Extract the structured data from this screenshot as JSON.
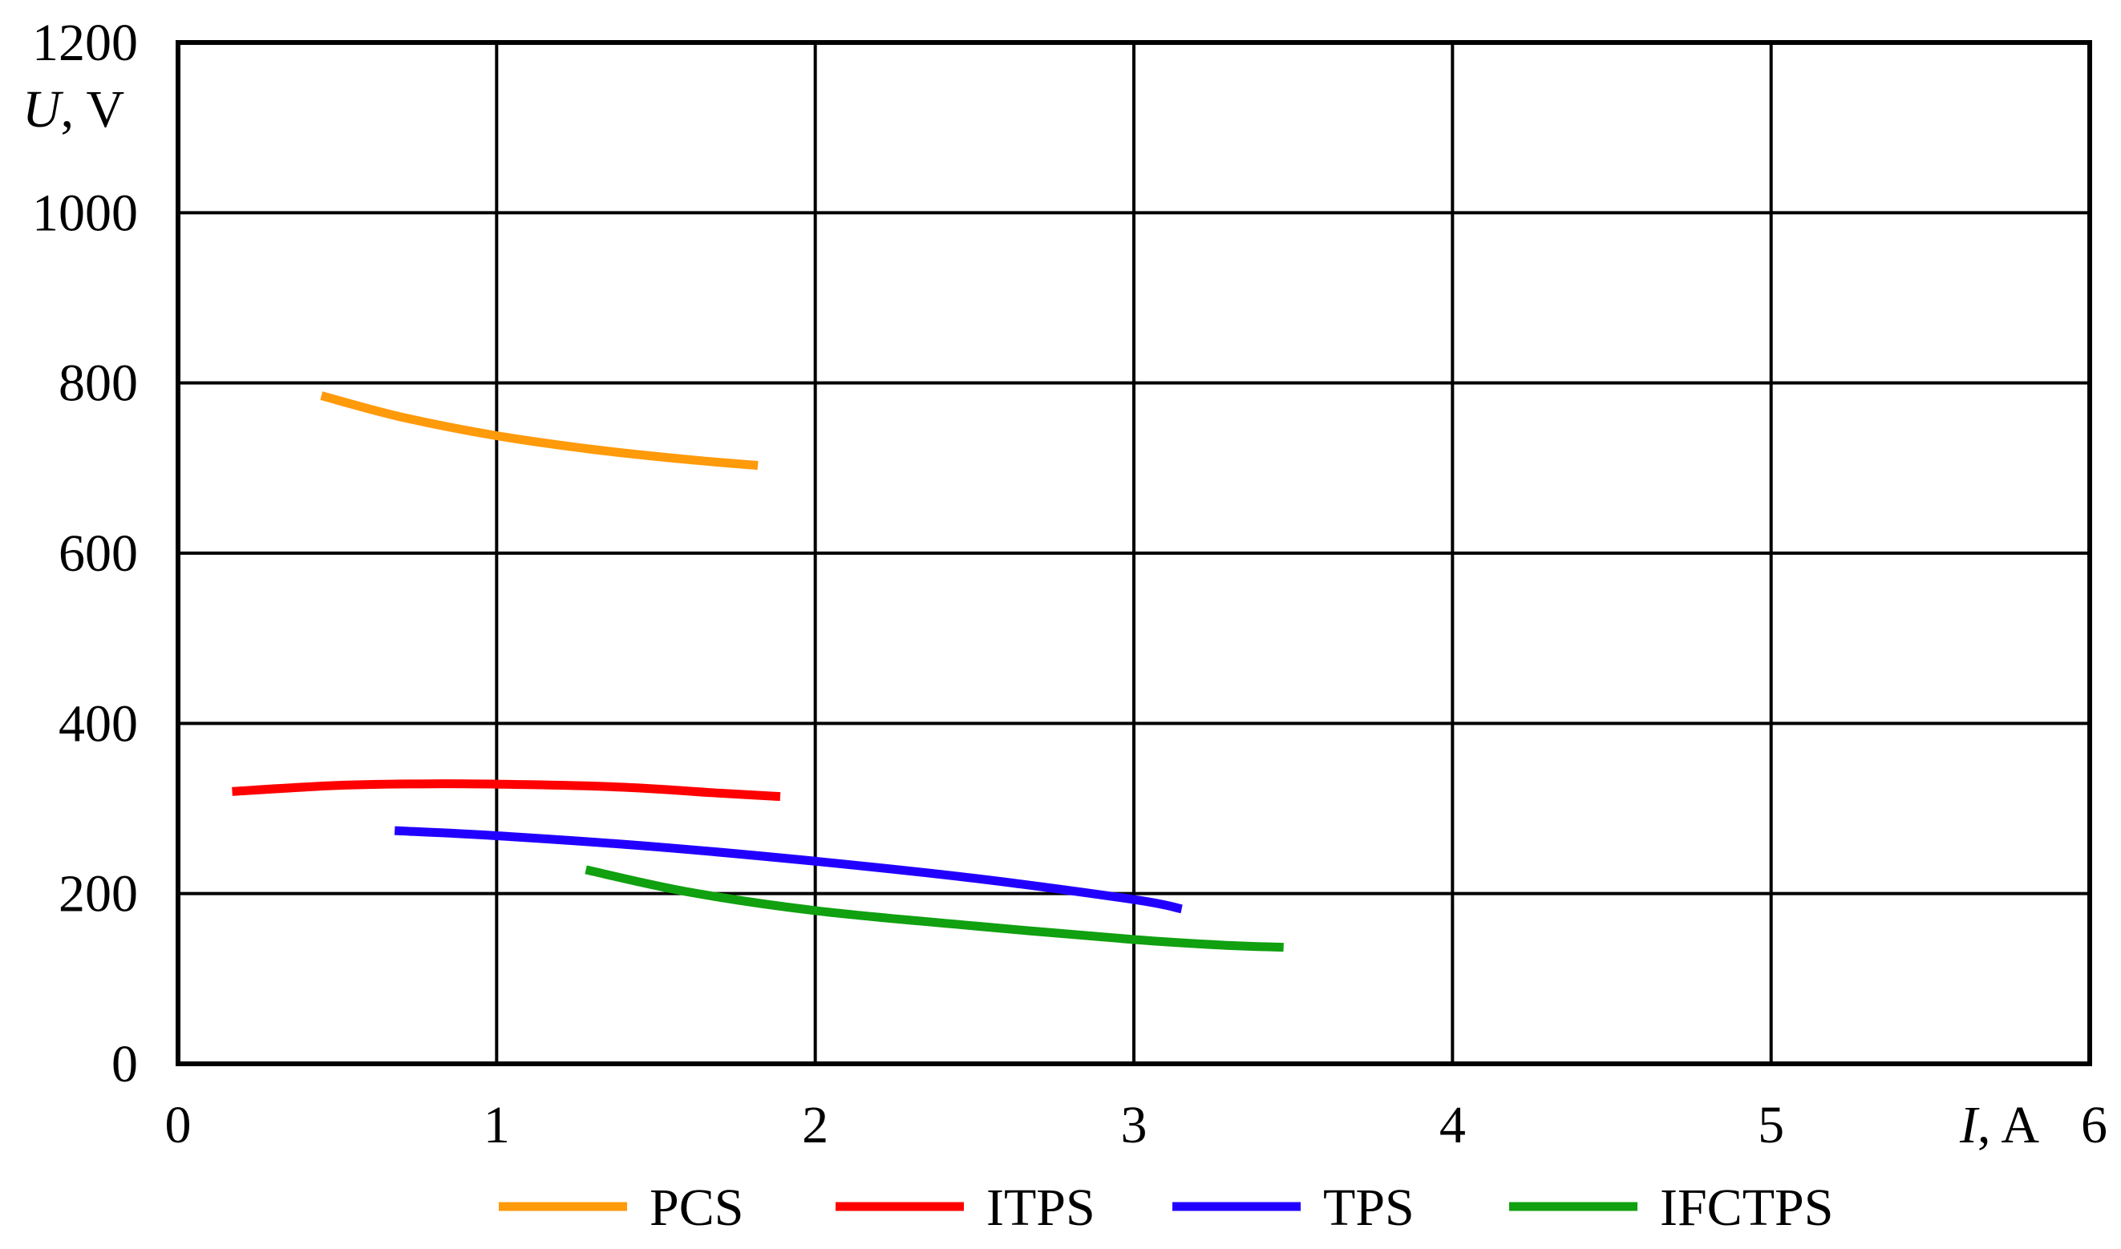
{
  "chart_data": {
    "type": "line",
    "title": "",
    "xlabel": {
      "var": "I",
      "unit": ", A"
    },
    "ylabel": {
      "var": "U",
      "unit": ", V"
    },
    "xlim": [
      0,
      6
    ],
    "ylim": [
      0,
      1200
    ],
    "x_ticks": [
      "0",
      "1",
      "2",
      "3",
      "4",
      "5",
      "6"
    ],
    "y_ticks": [
      "0",
      "200",
      "400",
      "600",
      "800",
      "1000",
      "1200"
    ],
    "grid": true,
    "legend_position": "bottom",
    "series": [
      {
        "name": "PCS",
        "color": "#ff9a0a",
        "points": [
          [
            0.45,
            785
          ],
          [
            0.7,
            760
          ],
          [
            1.0,
            738
          ],
          [
            1.3,
            722
          ],
          [
            1.6,
            710
          ],
          [
            1.82,
            703
          ]
        ]
      },
      {
        "name": "ITPS",
        "color": "#ff0000",
        "points": [
          [
            0.17,
            320
          ],
          [
            0.5,
            327
          ],
          [
            0.8,
            329
          ],
          [
            1.1,
            328
          ],
          [
            1.4,
            325
          ],
          [
            1.7,
            318
          ],
          [
            1.89,
            314
          ]
        ]
      },
      {
        "name": "TPS",
        "color": "#2200ff",
        "points": [
          [
            0.68,
            274
          ],
          [
            1.0,
            268
          ],
          [
            1.5,
            255
          ],
          [
            2.0,
            238
          ],
          [
            2.5,
            218
          ],
          [
            3.0,
            193
          ],
          [
            3.15,
            182
          ]
        ]
      },
      {
        "name": "IFCTPS",
        "color": "#10a010",
        "points": [
          [
            1.28,
            228
          ],
          [
            1.6,
            202
          ],
          [
            2.0,
            180
          ],
          [
            2.5,
            162
          ],
          [
            3.0,
            146
          ],
          [
            3.3,
            139
          ],
          [
            3.47,
            137
          ]
        ]
      }
    ]
  }
}
